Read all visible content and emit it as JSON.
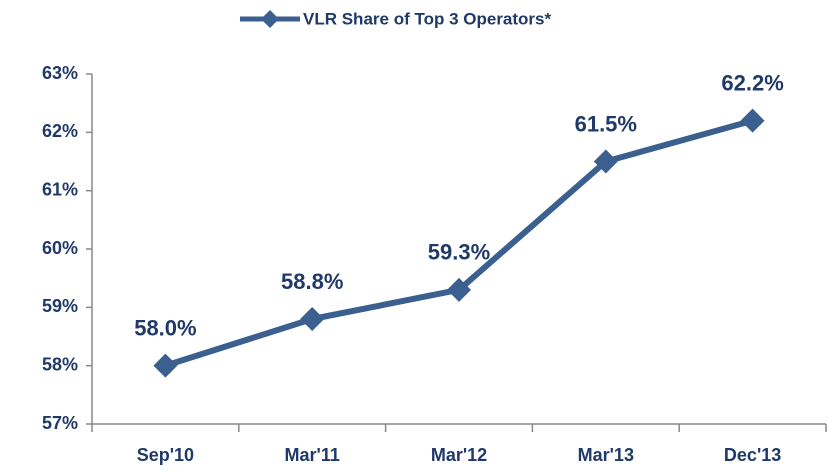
{
  "chart_data": {
    "type": "line",
    "categories": [
      "Sep'10",
      "Mar'11",
      "Mar'12",
      "Mar'13",
      "Dec'13"
    ],
    "series": [
      {
        "name": "VLR Share of Top 3 Operators*",
        "color": "#3b5f8f",
        "values": [
          58.0,
          58.8,
          59.3,
          61.5,
          62.2
        ],
        "value_labels": [
          "58.0%",
          "58.8%",
          "59.3%",
          "61.5%",
          "62.2%"
        ]
      }
    ],
    "ylim": [
      57,
      63
    ],
    "yticks": [
      {
        "value": 57,
        "label": "57%"
      },
      {
        "value": 58,
        "label": "58%"
      },
      {
        "value": 59,
        "label": "59%"
      },
      {
        "value": 60,
        "label": "60%"
      },
      {
        "value": 61,
        "label": "61%"
      },
      {
        "value": 62,
        "label": "62%"
      },
      {
        "value": 63,
        "label": "63%"
      }
    ],
    "grid": false,
    "legend": "top"
  }
}
